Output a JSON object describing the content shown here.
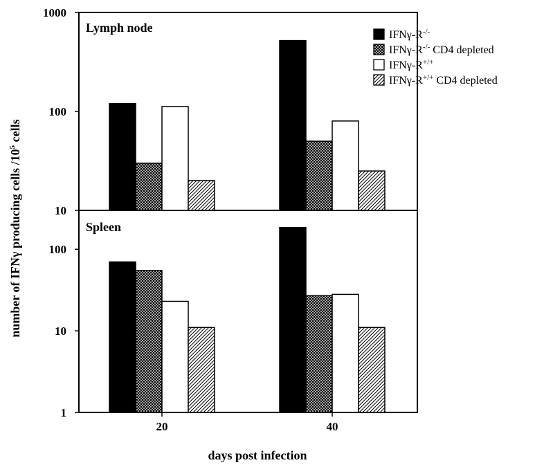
{
  "chart_data": {
    "type": "bar",
    "scale": "log",
    "xlabel": "days post infection",
    "ylabel": {
      "main": "number of IFNγ producing cells /10",
      "exp": "5",
      "tail": " cells"
    },
    "categories": [
      "20",
      "40"
    ],
    "legend": {
      "placement": "top-right",
      "entries": [
        {
          "base": "IFNγ-R",
          "sup": "-/-",
          "suffix": "",
          "fill": "solid"
        },
        {
          "base": "IFNγ-R",
          "sup": "-/-",
          "suffix": " CD4 depleted",
          "fill": "crosshatch"
        },
        {
          "base": "IFNγ-R",
          "sup": "+/+",
          "suffix": "",
          "fill": "open"
        },
        {
          "base": "IFNγ-R",
          "sup": "+/+",
          "suffix": " CD4 depleted",
          "fill": "hatch"
        }
      ]
    },
    "panels": [
      {
        "name": "Lymph node",
        "ylim": [
          10,
          1000
        ],
        "yticks": [
          "1000",
          "100",
          "10"
        ],
        "values": [
          [
            120,
            30,
            112,
            20
          ],
          [
            520,
            50,
            80,
            25
          ]
        ]
      },
      {
        "name": "Spleen",
        "ylim": [
          1,
          300
        ],
        "yticks": [
          "100",
          "10",
          "1"
        ],
        "values": [
          [
            70,
            55,
            23,
            11
          ],
          [
            185,
            27,
            28,
            11
          ]
        ]
      }
    ]
  }
}
